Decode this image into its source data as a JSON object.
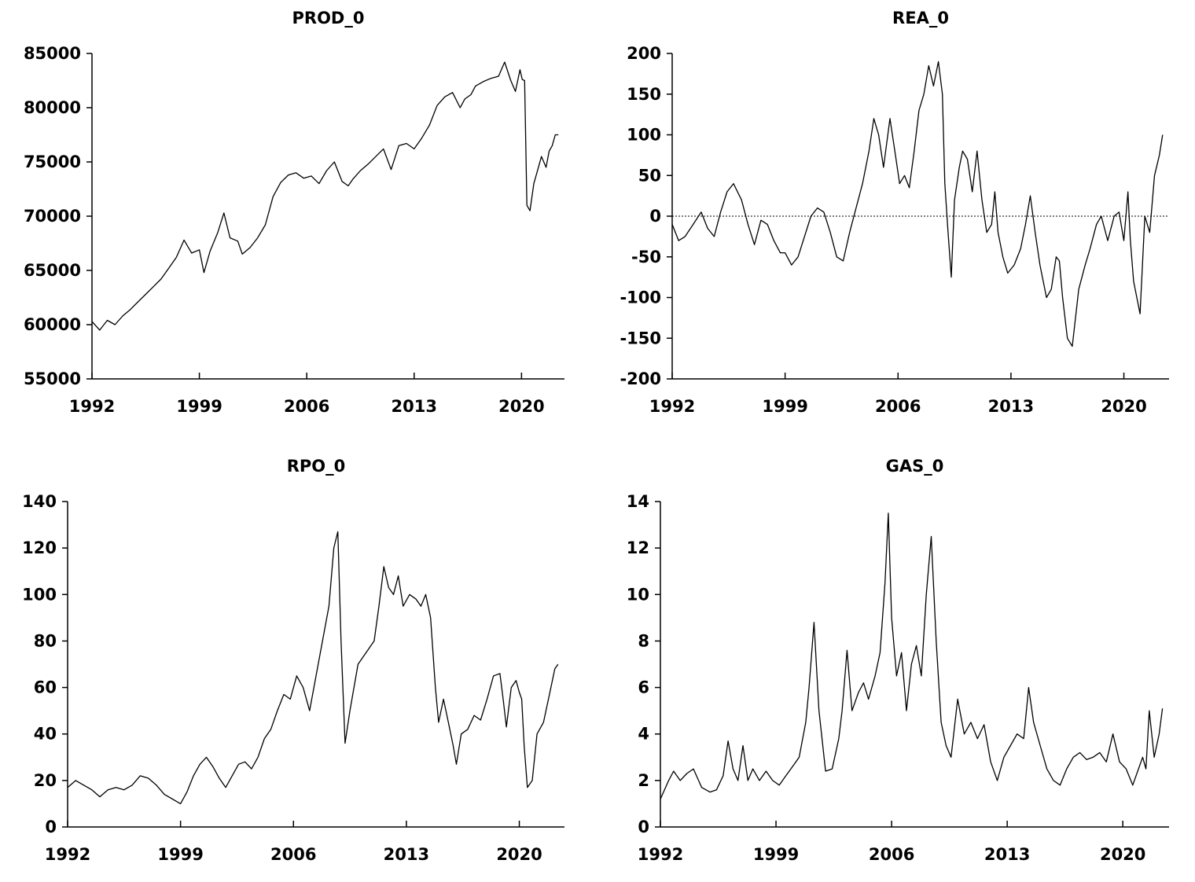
{
  "chart_data": [
    {
      "type": "line",
      "title": "PROD_0",
      "xlabel": "",
      "ylabel": "",
      "xlim": [
        1992,
        2022.8
      ],
      "ylim": [
        55000,
        85000
      ],
      "x_ticks": [
        "1992",
        "1999",
        "2006",
        "2013",
        "2020"
      ],
      "y_ticks": [
        "85000",
        "80000",
        "75000",
        "70000",
        "65000",
        "60000",
        "55000"
      ],
      "zero_line": false,
      "series": [
        {
          "x": [
            1992.0,
            1992.5,
            1993.0,
            1993.5,
            1994.0,
            1994.5,
            1995.0,
            1995.5,
            1996.0,
            1996.5,
            1997.0,
            1997.5,
            1998.0,
            1998.5,
            1999.0,
            1999.3,
            1999.7,
            2000.2,
            2000.6,
            2001.0,
            2001.5,
            2001.8,
            2002.3,
            2002.8,
            2003.3,
            2003.8,
            2004.3,
            2004.8,
            2005.3,
            2005.8,
            2006.3,
            2006.8,
            2007.3,
            2007.8,
            2008.3,
            2008.7,
            2009.0,
            2009.5,
            2010.0,
            2010.5,
            2011.0,
            2011.5,
            2012.0,
            2012.5,
            2013.0,
            2013.5,
            2014.0,
            2014.5,
            2015.0,
            2015.5,
            2016.0,
            2016.3,
            2016.7,
            2017.0,
            2017.5,
            2018.0,
            2018.5,
            2018.9,
            2019.3,
            2019.6,
            2019.9,
            2020.05,
            2020.2,
            2020.35,
            2020.55,
            2020.8,
            2021.0,
            2021.3,
            2021.6,
            2021.8,
            2022.0,
            2022.2,
            2022.4
          ],
          "y": [
            60300,
            59500,
            60400,
            60000,
            60800,
            61400,
            62100,
            62800,
            63500,
            64200,
            65200,
            66200,
            67800,
            66600,
            66900,
            64800,
            66800,
            68500,
            70300,
            68000,
            67700,
            66500,
            67100,
            68000,
            69200,
            71800,
            73100,
            73800,
            74000,
            73500,
            73700,
            73000,
            74200,
            75000,
            73200,
            72800,
            73400,
            74200,
            74800,
            75500,
            76200,
            74300,
            76500,
            76700,
            76200,
            77200,
            78400,
            80200,
            81000,
            81400,
            80000,
            80800,
            81200,
            82000,
            82400,
            82700,
            82900,
            84200,
            82500,
            81500,
            83500,
            82600,
            82500,
            71000,
            70500,
            73000,
            74000,
            75500,
            74500,
            76000,
            76500,
            77500,
            77500
          ]
        }
      ]
    },
    {
      "type": "line",
      "title": "REA_0",
      "xlabel": "",
      "ylabel": "",
      "xlim": [
        1992,
        2022.8
      ],
      "ylim": [
        -200,
        200
      ],
      "x_ticks": [
        "1992",
        "1999",
        "2006",
        "2013",
        "2020"
      ],
      "y_ticks": [
        "200",
        "150",
        "100",
        "50",
        "0",
        "-50",
        "-100",
        "-150",
        "-200"
      ],
      "zero_line": true,
      "series": [
        {
          "x": [
            1992.0,
            1992.4,
            1992.8,
            1993.3,
            1993.8,
            1994.2,
            1994.6,
            1995.0,
            1995.4,
            1995.8,
            1996.3,
            1996.7,
            1997.1,
            1997.5,
            1997.9,
            1998.3,
            1998.7,
            1999.0,
            1999.4,
            1999.8,
            2000.2,
            2000.6,
            2001.0,
            2001.4,
            2001.8,
            2002.2,
            2002.6,
            2003.0,
            2003.4,
            2003.8,
            2004.2,
            2004.5,
            2004.8,
            2005.1,
            2005.5,
            2005.8,
            2006.1,
            2006.4,
            2006.7,
            2007.0,
            2007.3,
            2007.6,
            2007.9,
            2008.2,
            2008.5,
            2008.75,
            2008.9,
            2009.1,
            2009.3,
            2009.5,
            2009.8,
            2010.0,
            2010.3,
            2010.6,
            2010.9,
            2011.2,
            2011.5,
            2011.8,
            2012.0,
            2012.2,
            2012.5,
            2012.8,
            2013.2,
            2013.6,
            2013.9,
            2014.2,
            2014.5,
            2014.8,
            2015.2,
            2015.5,
            2015.8,
            2016.0,
            2016.2,
            2016.5,
            2016.8,
            2017.2,
            2017.6,
            2017.9,
            2018.3,
            2018.6,
            2019.0,
            2019.4,
            2019.7,
            2020.0,
            2020.25,
            2020.4,
            2020.6,
            2020.8,
            2021.0,
            2021.3,
            2021.6,
            2021.9,
            2022.2,
            2022.4
          ],
          "y": [
            -10,
            -30,
            -25,
            -10,
            5,
            -15,
            -25,
            5,
            30,
            40,
            20,
            -10,
            -35,
            -5,
            -10,
            -30,
            -45,
            -45,
            -60,
            -50,
            -25,
            0,
            10,
            5,
            -20,
            -50,
            -55,
            -20,
            10,
            40,
            80,
            120,
            100,
            60,
            120,
            80,
            40,
            50,
            35,
            80,
            130,
            150,
            185,
            160,
            190,
            150,
            40,
            -20,
            -75,
            20,
            60,
            80,
            70,
            30,
            80,
            20,
            -20,
            -10,
            30,
            -20,
            -50,
            -70,
            -60,
            -40,
            -10,
            25,
            -20,
            -60,
            -100,
            -90,
            -50,
            -55,
            -100,
            -150,
            -160,
            -90,
            -60,
            -40,
            -10,
            0,
            -30,
            0,
            5,
            -30,
            30,
            -30,
            -80,
            -100,
            -120,
            0,
            -20,
            50,
            75,
            100
          ]
        }
      ]
    },
    {
      "type": "line",
      "title": "RPO_0",
      "xlabel": "",
      "ylabel": "",
      "xlim": [
        1992,
        2022.8
      ],
      "ylim": [
        0,
        140
      ],
      "x_ticks": [
        "1992",
        "1999",
        "2006",
        "2013",
        "2020"
      ],
      "y_ticks": [
        "140",
        "120",
        "100",
        "80",
        "60",
        "40",
        "20",
        "0"
      ],
      "zero_line": false,
      "series": [
        {
          "x": [
            1992.0,
            1992.5,
            1993.0,
            1993.5,
            1994.0,
            1994.5,
            1995.0,
            1995.5,
            1996.0,
            1996.5,
            1997.0,
            1997.5,
            1998.0,
            1998.5,
            1999.0,
            1999.4,
            1999.8,
            2000.2,
            2000.6,
            2001.0,
            2001.4,
            2001.8,
            2002.2,
            2002.6,
            2003.0,
            2003.4,
            2003.8,
            2004.2,
            2004.6,
            2005.0,
            2005.4,
            2005.8,
            2006.2,
            2006.6,
            2007.0,
            2007.4,
            2007.8,
            2008.2,
            2008.5,
            2008.75,
            2008.95,
            2009.2,
            2009.5,
            2010.0,
            2010.5,
            2011.0,
            2011.3,
            2011.6,
            2011.9,
            2012.2,
            2012.5,
            2012.8,
            2013.2,
            2013.6,
            2013.9,
            2014.2,
            2014.5,
            2014.8,
            2015.0,
            2015.3,
            2015.6,
            2015.9,
            2016.1,
            2016.4,
            2016.8,
            2017.2,
            2017.6,
            2018.0,
            2018.4,
            2018.8,
            2019.0,
            2019.2,
            2019.5,
            2019.8,
            2020.0,
            2020.15,
            2020.3,
            2020.5,
            2020.8,
            2021.1,
            2021.5,
            2021.9,
            2022.2,
            2022.4
          ],
          "y": [
            17,
            20,
            18,
            16,
            13,
            16,
            17,
            16,
            18,
            22,
            21,
            18,
            14,
            12,
            10,
            15,
            22,
            27,
            30,
            26,
            21,
            17,
            22,
            27,
            28,
            25,
            30,
            38,
            42,
            50,
            57,
            55,
            65,
            60,
            50,
            65,
            80,
            95,
            120,
            127,
            80,
            36,
            50,
            70,
            75,
            80,
            95,
            112,
            103,
            100,
            108,
            95,
            100,
            98,
            95,
            100,
            90,
            60,
            45,
            55,
            45,
            35,
            27,
            40,
            42,
            48,
            46,
            55,
            65,
            66,
            55,
            43,
            60,
            63,
            58,
            55,
            35,
            17,
            20,
            40,
            45,
            58,
            68,
            70
          ]
        }
      ]
    },
    {
      "type": "line",
      "title": "GAS_0",
      "xlabel": "",
      "ylabel": "",
      "xlim": [
        1992,
        2022.8
      ],
      "ylim": [
        0,
        14
      ],
      "x_ticks": [
        "1992",
        "1999",
        "2006",
        "2013",
        "2020"
      ],
      "y_ticks": [
        "14",
        "12",
        "10",
        "8",
        "6",
        "4",
        "2",
        "0"
      ],
      "zero_line": false,
      "series": [
        {
          "x": [
            1992.0,
            1992.5,
            1992.8,
            1993.2,
            1993.6,
            1994.0,
            1994.5,
            1995.0,
            1995.4,
            1995.8,
            1996.1,
            1996.4,
            1996.7,
            1997.0,
            1997.3,
            1997.6,
            1998.0,
            1998.4,
            1998.8,
            1999.2,
            1999.6,
            2000.0,
            2000.4,
            2000.8,
            2001.0,
            2001.3,
            2001.6,
            2002.0,
            2002.4,
            2002.8,
            2003.0,
            2003.3,
            2003.6,
            2004.0,
            2004.3,
            2004.6,
            2005.0,
            2005.3,
            2005.6,
            2005.8,
            2006.0,
            2006.3,
            2006.6,
            2006.9,
            2007.2,
            2007.5,
            2007.8,
            2008.1,
            2008.4,
            2008.7,
            2009.0,
            2009.3,
            2009.6,
            2010.0,
            2010.4,
            2010.8,
            2011.2,
            2011.6,
            2012.0,
            2012.4,
            2012.8,
            2013.2,
            2013.6,
            2014.0,
            2014.3,
            2014.6,
            2015.0,
            2015.4,
            2015.8,
            2016.2,
            2016.6,
            2017.0,
            2017.4,
            2017.8,
            2018.2,
            2018.6,
            2019.0,
            2019.4,
            2019.8,
            2020.2,
            2020.6,
            2021.0,
            2021.2,
            2021.4,
            2021.6,
            2021.9,
            2022.2,
            2022.4
          ],
          "y": [
            1.2,
            2.0,
            2.4,
            2.0,
            2.3,
            2.5,
            1.7,
            1.5,
            1.6,
            2.2,
            3.7,
            2.5,
            2.0,
            3.5,
            2.0,
            2.5,
            2.0,
            2.4,
            2.0,
            1.8,
            2.2,
            2.6,
            3.0,
            4.5,
            6.0,
            8.8,
            5.0,
            2.4,
            2.5,
            3.8,
            5.0,
            7.6,
            5.0,
            5.8,
            6.2,
            5.5,
            6.5,
            7.5,
            10.5,
            13.5,
            9.0,
            6.5,
            7.5,
            5.0,
            7.0,
            7.8,
            6.5,
            10.0,
            12.5,
            8.0,
            4.5,
            3.5,
            3.0,
            5.5,
            4.0,
            4.5,
            3.8,
            4.4,
            2.8,
            2.0,
            3.0,
            3.5,
            4.0,
            3.8,
            6.0,
            4.5,
            3.5,
            2.5,
            2.0,
            1.8,
            2.5,
            3.0,
            3.2,
            2.9,
            3.0,
            3.2,
            2.8,
            4.0,
            2.8,
            2.5,
            1.8,
            2.6,
            3.0,
            2.5,
            5.0,
            3.0,
            4.0,
            5.1
          ]
        }
      ]
    }
  ]
}
